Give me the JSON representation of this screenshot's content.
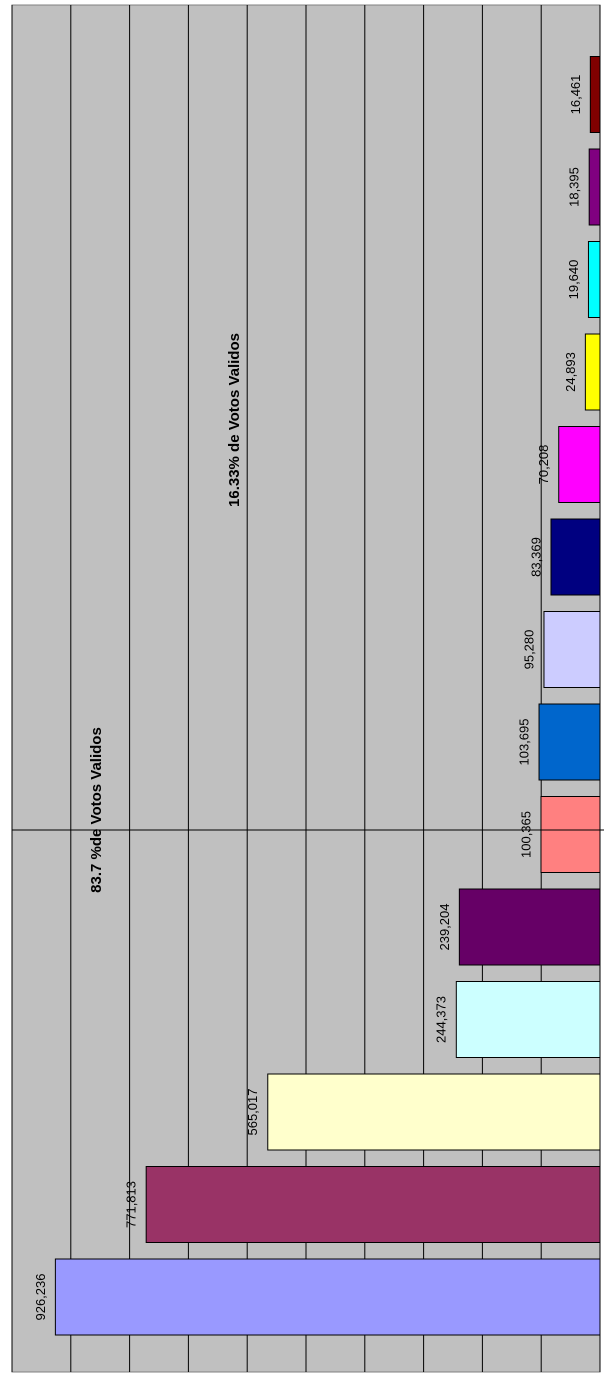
{
  "chart_data": {
    "type": "bar",
    "orientation": "rotated",
    "categories": [
      null,
      null,
      null,
      null,
      null,
      null,
      null,
      null,
      null,
      null,
      null,
      null,
      null,
      null
    ],
    "values": [
      926236,
      771813,
      565017,
      244373,
      239204,
      100365,
      103695,
      95280,
      83369,
      70208,
      24893,
      19640,
      18395,
      16461
    ],
    "value_labels": [
      "926,236",
      "771,813",
      "565,017",
      "244,373",
      "239,204",
      "100,365",
      "103,695",
      "95,280",
      "83,369",
      "70,208",
      "24,893",
      "19,640",
      "18,395",
      "16,461"
    ],
    "colors": [
      "#9999ff",
      "#993366",
      "#ffffcc",
      "#ccffff",
      "#660066",
      "#ff8080",
      "#0066cc",
      "#ccccff",
      "#000080",
      "#ff00ff",
      "#ffff00",
      "#00ffff",
      "#800080",
      "#800000"
    ],
    "ylim": [
      0,
      1000000
    ],
    "yticks": [
      0,
      100000,
      200000,
      300000,
      400000,
      500000,
      600000,
      700000,
      800000,
      900000,
      1000000
    ],
    "grid": true,
    "annotations": [
      "83.7 %de Votos Validos",
      "16.33% de Votos Validos"
    ]
  }
}
